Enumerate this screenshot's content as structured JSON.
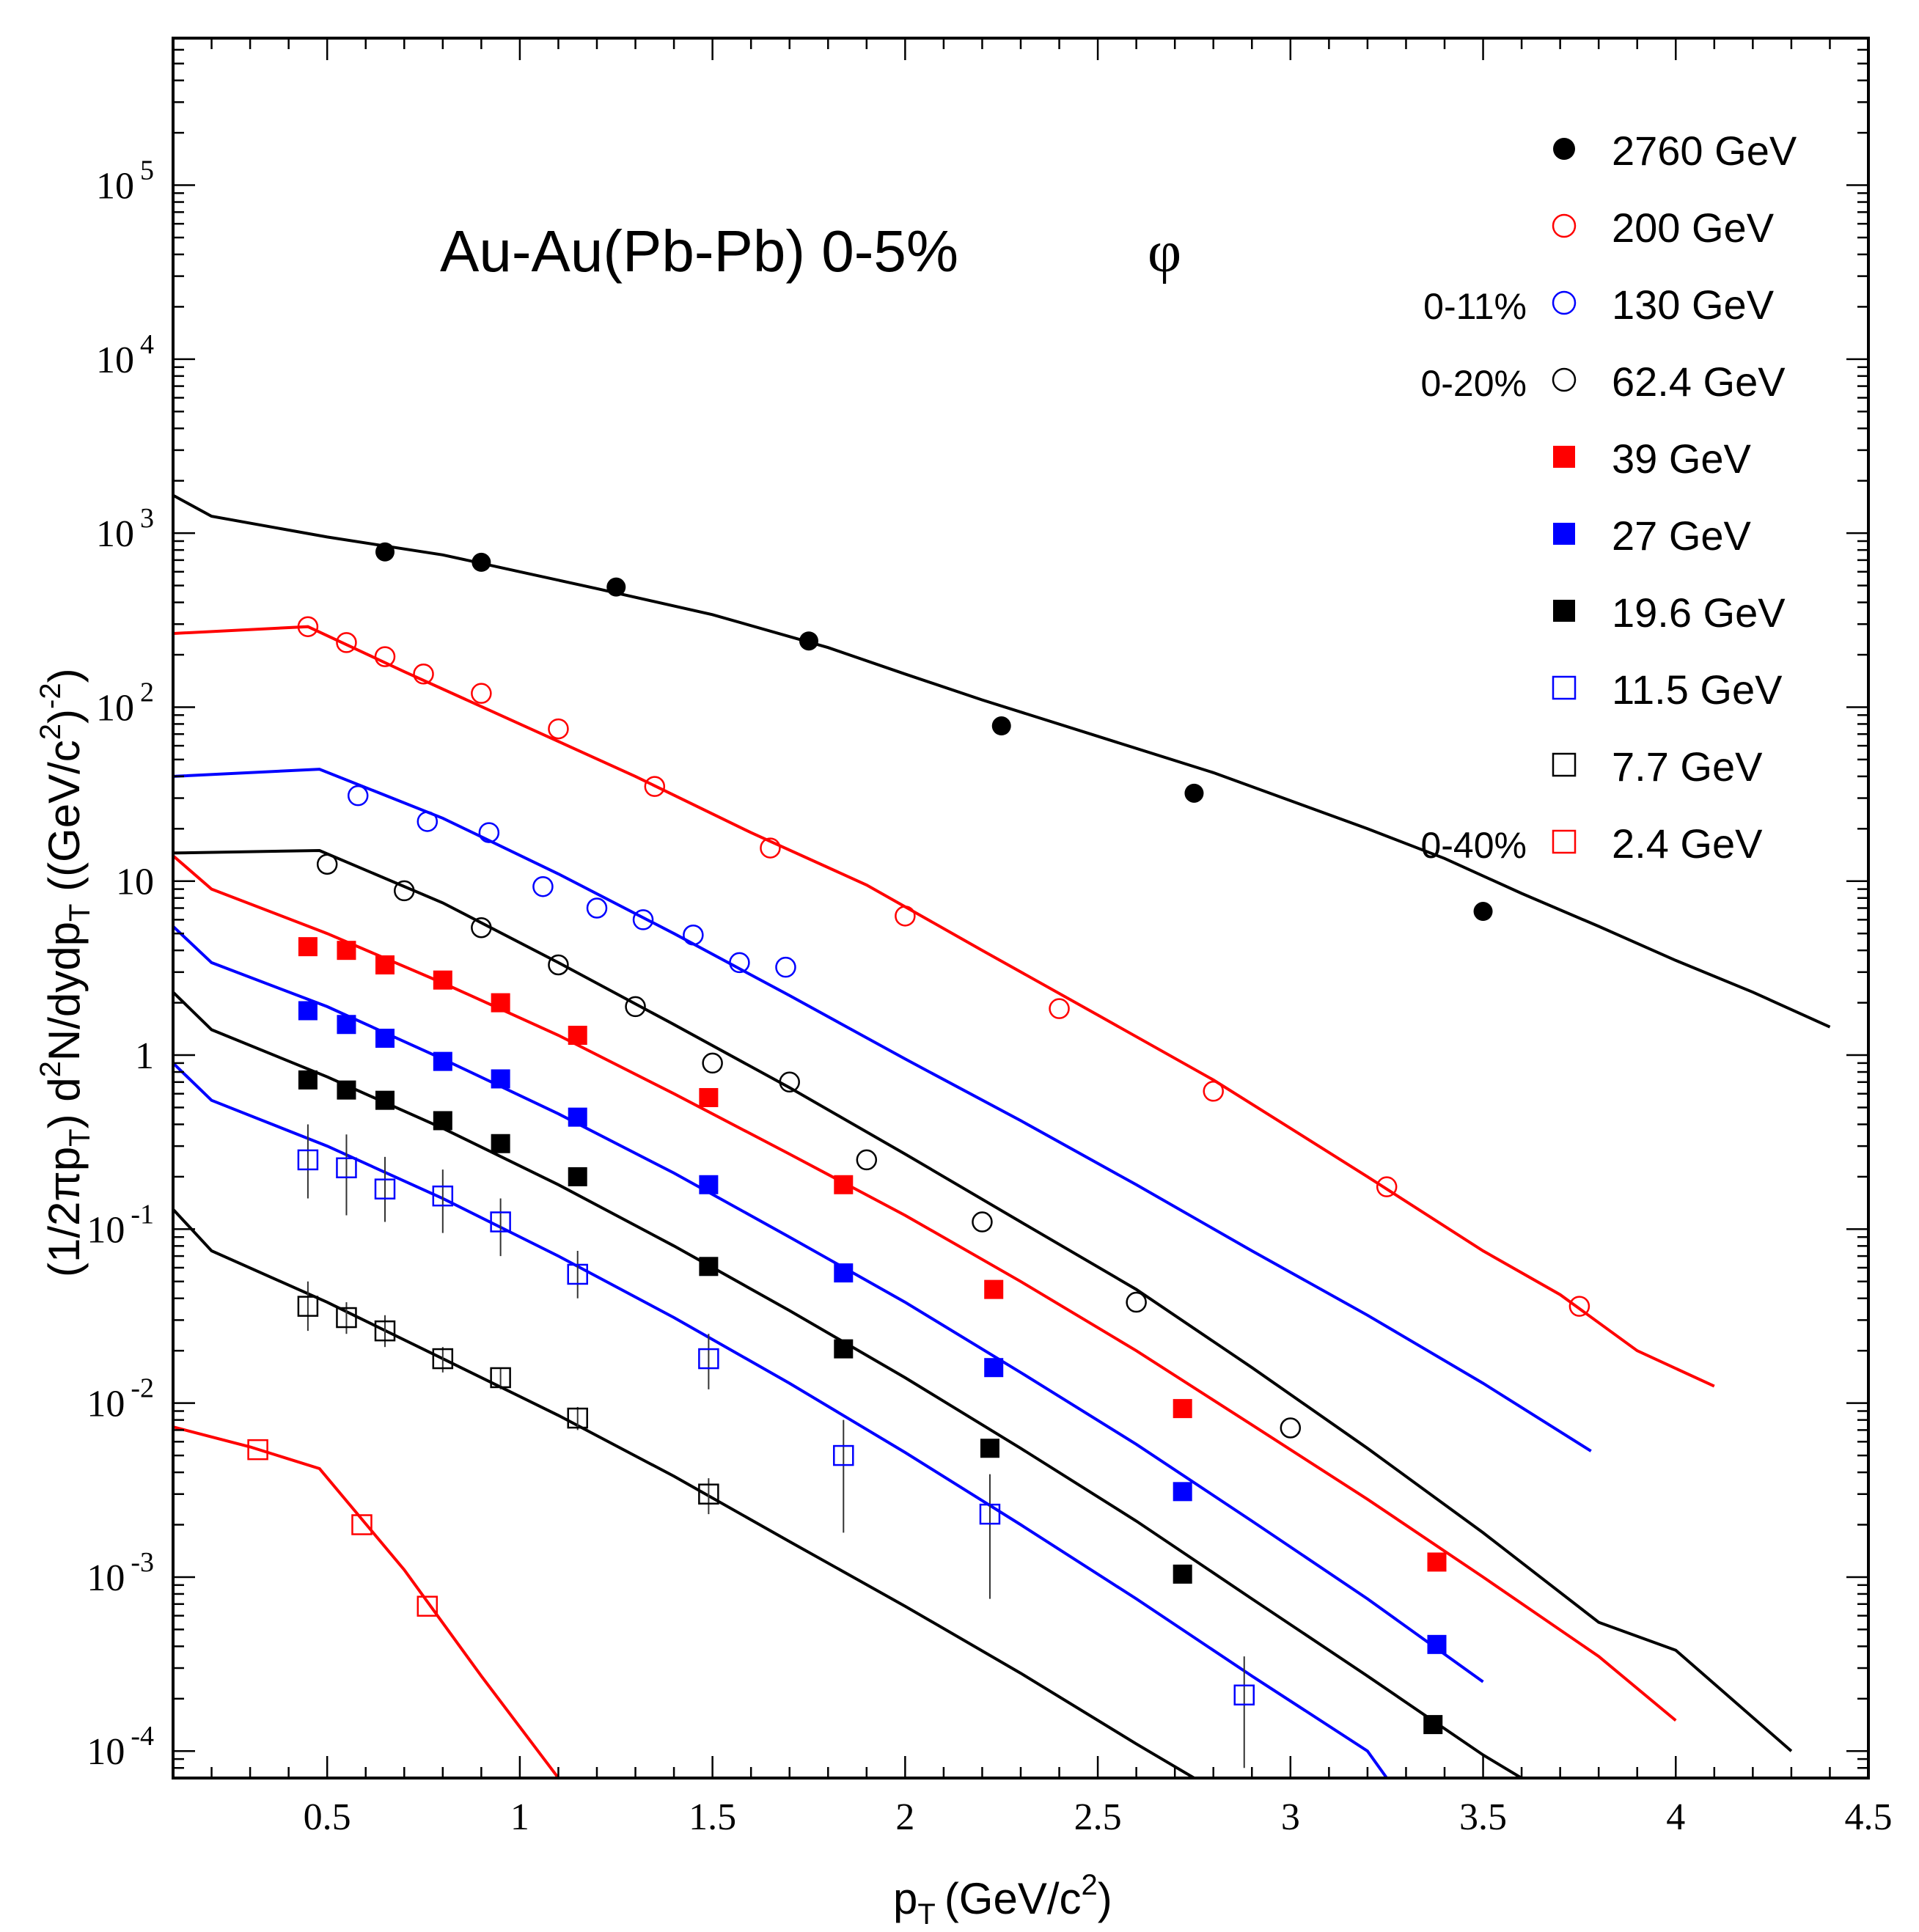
{
  "chart_data": {
    "type": "scatter",
    "title": "Au-Au(Pb-Pb)  0-5%",
    "particle": "φ",
    "xlabel": "p",
    "xlabel_sub": "T",
    "xlabel_unit": "(GeV/c",
    "xlabel_sup": "2",
    "xlabel_close": ")",
    "ylabel": "(1/2πp_T) d²N/dydp_T ((GeV/c²)⁻²)",
    "ylabel_parts": {
      "p1": "(1/2πp",
      "s1": "T",
      "p2": ") d",
      "s2": "2",
      "p3": "N/dydp",
      "s3": "T",
      "p4": " ((GeV/c",
      "s4": "2",
      "p5": ")",
      "s5": "-2",
      "p6": ")"
    },
    "xlim": [
      0.1,
      4.5
    ],
    "ylim": [
      7e-05,
      700000
    ],
    "yscale": "log",
    "x_ticks": [
      "0.5",
      "1",
      "1.5",
      "2",
      "2.5",
      "3",
      "3.5",
      "4",
      "4.5"
    ],
    "y_ticks": [
      {
        "base": "10",
        "exp": "-4"
      },
      {
        "base": "10",
        "exp": "-3"
      },
      {
        "base": "10",
        "exp": "-2"
      },
      {
        "base": "10",
        "exp": "-1"
      },
      {
        "base": "1",
        "exp": ""
      },
      {
        "base": "10",
        "exp": ""
      },
      {
        "base": "10",
        "exp": "2"
      },
      {
        "base": "10",
        "exp": "3"
      },
      {
        "base": "10",
        "exp": "4"
      },
      {
        "base": "10",
        "exp": "5"
      }
    ],
    "centrality_notes": [
      {
        "text": "0-11%",
        "series": "130 GeV"
      },
      {
        "text": "0-20%",
        "series": "62.4 GeV"
      },
      {
        "text": "0-40%",
        "series": "2.4 GeV"
      }
    ],
    "series": [
      {
        "name": "2760 GeV",
        "marker": "filled-circle",
        "color": "#000000",
        "points": [
          [
            0.65,
            780
          ],
          [
            0.9,
            680
          ],
          [
            1.25,
            490
          ],
          [
            1.75,
            240
          ],
          [
            2.25,
            78
          ],
          [
            2.75,
            32
          ],
          [
            3.5,
            6.7
          ]
        ],
        "errors": [],
        "curve": [
          [
            0.1,
            1650
          ],
          [
            0.2,
            1250
          ],
          [
            0.5,
            950
          ],
          [
            0.8,
            750
          ],
          [
            1.0,
            600
          ],
          [
            1.2,
            480
          ],
          [
            1.5,
            340
          ],
          [
            1.8,
            220
          ],
          [
            2.0,
            155
          ],
          [
            2.2,
            110
          ],
          [
            2.5,
            68
          ],
          [
            2.8,
            42
          ],
          [
            3.0,
            29
          ],
          [
            3.2,
            20
          ],
          [
            3.4,
            13.5
          ],
          [
            3.6,
            8.5
          ],
          [
            3.8,
            5.5
          ],
          [
            4.0,
            3.5
          ],
          [
            4.2,
            2.3
          ],
          [
            4.4,
            1.45
          ]
        ]
      },
      {
        "name": "200 GeV",
        "marker": "open-circle",
        "color": "#ff0000",
        "points": [
          [
            0.45,
            290
          ],
          [
            0.55,
            235
          ],
          [
            0.65,
            195
          ],
          [
            0.75,
            155
          ],
          [
            0.9,
            120
          ],
          [
            1.1,
            75
          ],
          [
            1.35,
            35
          ],
          [
            1.65,
            15.5
          ],
          [
            2.0,
            6.3
          ],
          [
            2.4,
            1.85
          ],
          [
            2.8,
            0.62
          ],
          [
            3.25,
            0.175
          ],
          [
            3.75,
            0.036
          ]
        ],
        "errors": [],
        "curve": [
          [
            0.1,
            265
          ],
          [
            0.45,
            290
          ],
          [
            0.7,
            160
          ],
          [
            1.0,
            80
          ],
          [
            1.3,
            40
          ],
          [
            1.6,
            19
          ],
          [
            1.9,
            9.5
          ],
          [
            2.2,
            4.0
          ],
          [
            2.5,
            1.7
          ],
          [
            2.8,
            0.72
          ],
          [
            3.0,
            0.38
          ],
          [
            3.2,
            0.2
          ],
          [
            3.5,
            0.075
          ],
          [
            3.7,
            0.042
          ],
          [
            3.9,
            0.02
          ],
          [
            4.1,
            0.0125
          ]
        ]
      },
      {
        "name": "130 GeV",
        "marker": "open-circle",
        "color": "#0000ff",
        "points": [
          [
            0.58,
            31
          ],
          [
            0.76,
            22
          ],
          [
            0.92,
            19
          ],
          [
            1.06,
            9.3
          ],
          [
            1.2,
            7.0
          ],
          [
            1.32,
            6.0
          ],
          [
            1.45,
            4.9
          ],
          [
            1.57,
            3.4
          ],
          [
            1.69,
            3.2
          ]
        ],
        "errors": [],
        "curve": [
          [
            0.1,
            40
          ],
          [
            0.48,
            44
          ],
          [
            0.8,
            23
          ],
          [
            1.1,
            11
          ],
          [
            1.4,
            5.0
          ],
          [
            1.7,
            2.2
          ],
          [
            2.0,
            0.95
          ],
          [
            2.3,
            0.42
          ],
          [
            2.6,
            0.18
          ],
          [
            2.9,
            0.075
          ],
          [
            3.2,
            0.032
          ],
          [
            3.5,
            0.013
          ],
          [
            3.78,
            0.0053
          ]
        ]
      },
      {
        "name": "62.4 GeV",
        "marker": "open-circle",
        "color": "#000000",
        "points": [
          [
            0.5,
            12.5
          ],
          [
            0.7,
            8.8
          ],
          [
            0.9,
            5.4
          ],
          [
            1.1,
            3.3
          ],
          [
            1.3,
            1.9
          ],
          [
            1.5,
            0.9
          ],
          [
            1.7,
            0.7
          ],
          [
            1.9,
            0.25
          ],
          [
            2.2,
            0.11
          ],
          [
            2.6,
            0.038
          ],
          [
            3.0,
            0.0072
          ]
        ],
        "errors": [],
        "curve": [
          [
            0.1,
            14.5
          ],
          [
            0.48,
            15
          ],
          [
            0.8,
            7.5
          ],
          [
            1.1,
            3.4
          ],
          [
            1.4,
            1.5
          ],
          [
            1.7,
            0.65
          ],
          [
            2.0,
            0.27
          ],
          [
            2.3,
            0.11
          ],
          [
            2.6,
            0.045
          ],
          [
            2.9,
            0.016
          ],
          [
            3.2,
            0.0055
          ],
          [
            3.5,
            0.0018
          ],
          [
            3.8,
            0.00055
          ],
          [
            4.0,
            0.00038
          ],
          [
            4.3,
            0.0001
          ]
        ]
      },
      {
        "name": "39 GeV",
        "marker": "filled-square",
        "color": "#ff0000",
        "points": [
          [
            0.45,
            4.2
          ],
          [
            0.55,
            4.0
          ],
          [
            0.65,
            3.3
          ],
          [
            0.8,
            2.7
          ],
          [
            0.95,
            2.0
          ],
          [
            1.15,
            1.3
          ],
          [
            1.49,
            0.57
          ],
          [
            1.84,
            0.18
          ],
          [
            2.23,
            0.045
          ],
          [
            2.72,
            0.0093
          ],
          [
            3.38,
            0.00122
          ]
        ],
        "errors": [],
        "curve": [
          [
            0.1,
            14
          ],
          [
            0.2,
            9.0
          ],
          [
            0.5,
            5.0
          ],
          [
            0.8,
            2.6
          ],
          [
            1.1,
            1.3
          ],
          [
            1.4,
            0.6
          ],
          [
            1.7,
            0.27
          ],
          [
            2.0,
            0.12
          ],
          [
            2.3,
            0.05
          ],
          [
            2.6,
            0.02
          ],
          [
            2.9,
            0.0075
          ],
          [
            3.2,
            0.0028
          ],
          [
            3.5,
            0.001
          ],
          [
            3.8,
            0.00035
          ],
          [
            4.0,
            0.00015
          ]
        ]
      },
      {
        "name": "27 GeV",
        "marker": "filled-square",
        "color": "#0000ff",
        "points": [
          [
            0.45,
            1.8
          ],
          [
            0.55,
            1.5
          ],
          [
            0.65,
            1.25
          ],
          [
            0.8,
            0.92
          ],
          [
            0.95,
            0.73
          ],
          [
            1.15,
            0.44
          ],
          [
            1.49,
            0.18
          ],
          [
            1.84,
            0.056
          ],
          [
            2.23,
            0.016
          ],
          [
            2.72,
            0.0031
          ],
          [
            3.38,
            0.00041
          ]
        ],
        "errors": [],
        "curve": [
          [
            0.1,
            5.5
          ],
          [
            0.2,
            3.4
          ],
          [
            0.5,
            1.9
          ],
          [
            0.8,
            0.95
          ],
          [
            1.1,
            0.46
          ],
          [
            1.4,
            0.21
          ],
          [
            1.7,
            0.09
          ],
          [
            2.0,
            0.038
          ],
          [
            2.3,
            0.015
          ],
          [
            2.6,
            0.0058
          ],
          [
            2.9,
            0.0021
          ],
          [
            3.2,
            0.00075
          ],
          [
            3.5,
            0.00025
          ]
        ]
      },
      {
        "name": "19.6 GeV",
        "marker": "filled-square",
        "color": "#000000",
        "points": [
          [
            0.45,
            0.72
          ],
          [
            0.55,
            0.63
          ],
          [
            0.65,
            0.55
          ],
          [
            0.8,
            0.42
          ],
          [
            0.95,
            0.31
          ],
          [
            1.15,
            0.2
          ],
          [
            1.49,
            0.061
          ],
          [
            1.84,
            0.0205
          ],
          [
            2.22,
            0.0055
          ],
          [
            2.72,
            0.00104
          ],
          [
            3.37,
            0.000142
          ]
        ],
        "errors": [],
        "curve": [
          [
            0.1,
            2.3
          ],
          [
            0.2,
            1.4
          ],
          [
            0.5,
            0.75
          ],
          [
            0.8,
            0.38
          ],
          [
            1.1,
            0.18
          ],
          [
            1.4,
            0.08
          ],
          [
            1.7,
            0.034
          ],
          [
            2.0,
            0.014
          ],
          [
            2.3,
            0.0055
          ],
          [
            2.6,
            0.0021
          ],
          [
            2.9,
            0.00075
          ],
          [
            3.2,
            0.00027
          ],
          [
            3.5,
            9.5e-05
          ],
          [
            3.65,
            6e-05
          ]
        ]
      },
      {
        "name": "11.5 GeV",
        "marker": "open-square",
        "color": "#0000ff",
        "points": [
          [
            0.45,
            0.25
          ],
          [
            0.55,
            0.225
          ],
          [
            0.65,
            0.17
          ],
          [
            0.8,
            0.155
          ],
          [
            0.95,
            0.11
          ],
          [
            1.15,
            0.055
          ],
          [
            1.49,
            0.018
          ],
          [
            1.84,
            0.005
          ],
          [
            2.22,
            0.0023
          ],
          [
            2.88,
            0.00021
          ]
        ],
        "errors": [
          [
            0.15,
            0.4
          ],
          [
            0.12,
            0.35
          ],
          [
            0.11,
            0.26
          ],
          [
            0.095,
            0.22
          ],
          [
            0.07,
            0.15
          ],
          [
            0.04,
            0.075
          ],
          [
            0.012,
            0.025
          ],
          [
            0.0018,
            0.008
          ],
          [
            0.00075,
            0.0039
          ],
          [
            8e-05,
            0.00035
          ]
        ],
        "curve": [
          [
            0.1,
            0.9
          ],
          [
            0.2,
            0.55
          ],
          [
            0.5,
            0.3
          ],
          [
            0.8,
            0.15
          ],
          [
            1.1,
            0.07
          ],
          [
            1.4,
            0.031
          ],
          [
            1.7,
            0.013
          ],
          [
            2.0,
            0.0052
          ],
          [
            2.3,
            0.002
          ],
          [
            2.6,
            0.00075
          ],
          [
            2.9,
            0.00027
          ],
          [
            3.2,
            0.0001
          ],
          [
            3.25,
            7e-05
          ]
        ]
      },
      {
        "name": "7.7 GeV",
        "marker": "open-square",
        "color": "#000000",
        "points": [
          [
            0.45,
            0.036
          ],
          [
            0.55,
            0.031
          ],
          [
            0.65,
            0.026
          ],
          [
            0.8,
            0.018
          ],
          [
            0.95,
            0.014
          ],
          [
            1.15,
            0.0082
          ],
          [
            1.49,
            0.003
          ]
        ],
        "errors": [
          [
            0.026,
            0.05
          ],
          [
            0.025,
            0.038
          ],
          [
            0.021,
            0.032
          ],
          [
            0.015,
            0.021
          ],
          [
            0.012,
            0.016
          ],
          [
            0.007,
            0.0095
          ],
          [
            0.0023,
            0.0037
          ]
        ],
        "curve": [
          [
            0.1,
            0.13
          ],
          [
            0.2,
            0.075
          ],
          [
            0.5,
            0.038
          ],
          [
            0.8,
            0.018
          ],
          [
            1.1,
            0.0085
          ],
          [
            1.4,
            0.0038
          ],
          [
            1.7,
            0.0016
          ],
          [
            2.0,
            0.00068
          ],
          [
            2.3,
            0.00028
          ],
          [
            2.6,
            0.00011
          ],
          [
            2.75,
            7e-05
          ]
        ]
      },
      {
        "name": "2.4 GeV",
        "marker": "open-square",
        "color": "#ff0000",
        "points": [
          [
            0.32,
            0.0054
          ],
          [
            0.59,
            0.002
          ],
          [
            0.76,
            0.00068
          ]
        ],
        "errors": [],
        "curve": [
          [
            0.1,
            0.0073
          ],
          [
            0.3,
            0.0056
          ],
          [
            0.48,
            0.0042
          ],
          [
            0.7,
            0.0011
          ],
          [
            0.9,
            0.00027
          ],
          [
            1.1,
            7e-05
          ]
        ]
      }
    ]
  }
}
